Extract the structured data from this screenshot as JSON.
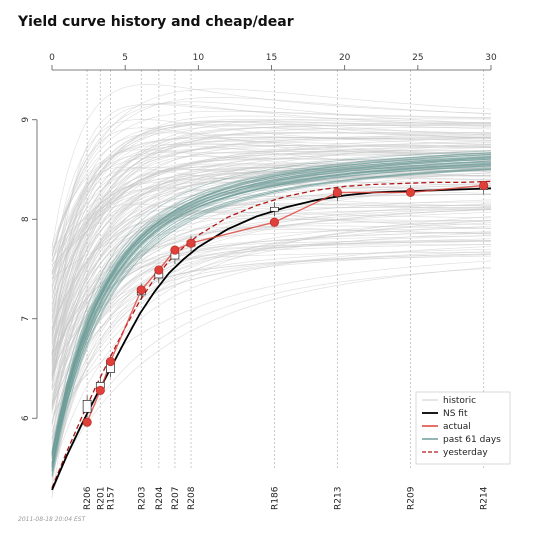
{
  "title": "Yield curve history and cheap/dear",
  "footer": "2011-08-18 20:04 EST",
  "colors": {
    "historic": "#c9c9c9",
    "recent": "#6f9d9a",
    "fit": "#000000",
    "actual": "#e0403a",
    "yesterday": "#b01818",
    "vline": "#bdbdbd"
  },
  "chart_data": {
    "type": "line",
    "title": "Yield curve history and cheap/dear",
    "xlim": [
      0,
      30
    ],
    "ylim": [
      5.5,
      9.5
    ],
    "x_ticks": [
      0,
      5,
      10,
      15,
      20,
      25,
      30
    ],
    "y_ticks": [
      6,
      7,
      8,
      9
    ],
    "legend_position": "bottom-right",
    "legend": [
      "historic",
      "NS fit",
      "actual",
      "past 61 days",
      "yesterday"
    ],
    "bonds": [
      {
        "name": "R206",
        "maturity": 2.4,
        "actual": 5.96,
        "fit": 6.07,
        "box": [
          6.06,
          6.18
        ]
      },
      {
        "name": "R201",
        "maturity": 3.3,
        "actual": 6.28,
        "fit": 6.33,
        "box": [
          6.3,
          6.36
        ]
      },
      {
        "name": "R157",
        "maturity": 4.0,
        "actual": 6.57,
        "fit": 6.55,
        "box": [
          6.46,
          6.58
        ]
      },
      {
        "name": "R203",
        "maturity": 6.1,
        "actual": 7.29,
        "fit": 7.26,
        "box": [
          7.24,
          7.3
        ]
      },
      {
        "name": "R204",
        "maturity": 7.3,
        "actual": 7.49,
        "fit": 7.44,
        "box": [
          7.41,
          7.46
        ]
      },
      {
        "name": "R207",
        "maturity": 8.4,
        "actual": 7.69,
        "fit": 7.61,
        "box": [
          7.6,
          7.66
        ]
      },
      {
        "name": "R208",
        "maturity": 9.5,
        "actual": 7.76,
        "fit": 7.74,
        "box": [
          7.73,
          7.78
        ]
      },
      {
        "name": "R186",
        "maturity": 15.2,
        "actual": 7.97,
        "fit": 8.1,
        "box": [
          8.08,
          8.12
        ]
      },
      {
        "name": "R213",
        "maturity": 19.5,
        "actual": 8.27,
        "fit": 8.24,
        "box": [
          8.23,
          8.27
        ]
      },
      {
        "name": "R209",
        "maturity": 24.5,
        "actual": 8.27,
        "fit": 8.28,
        "box": [
          8.27,
          8.29
        ]
      },
      {
        "name": "R214",
        "maturity": 29.5,
        "actual": 8.34,
        "fit": 8.3,
        "box": [
          8.3,
          8.32
        ]
      }
    ],
    "ns_fit": {
      "x": [
        0,
        1,
        2,
        3,
        4,
        5,
        6,
        7,
        8,
        9,
        10,
        12,
        14,
        16,
        18,
        20,
        22,
        24,
        26,
        28,
        30
      ],
      "y": [
        5.28,
        5.62,
        5.93,
        6.22,
        6.5,
        6.78,
        7.05,
        7.27,
        7.46,
        7.6,
        7.72,
        7.9,
        8.03,
        8.12,
        8.19,
        8.24,
        8.27,
        8.28,
        8.29,
        8.3,
        8.31
      ]
    },
    "yesterday": {
      "x": [
        0,
        1,
        2,
        3,
        4,
        5,
        6,
        7,
        8,
        9,
        10,
        12,
        14,
        16,
        18,
        20,
        22,
        24,
        26,
        28,
        30
      ],
      "y": [
        5.3,
        5.66,
        6.0,
        6.32,
        6.62,
        6.91,
        7.18,
        7.4,
        7.58,
        7.72,
        7.84,
        8.02,
        8.14,
        8.23,
        8.29,
        8.33,
        8.35,
        8.36,
        8.37,
        8.37,
        8.38
      ]
    }
  }
}
